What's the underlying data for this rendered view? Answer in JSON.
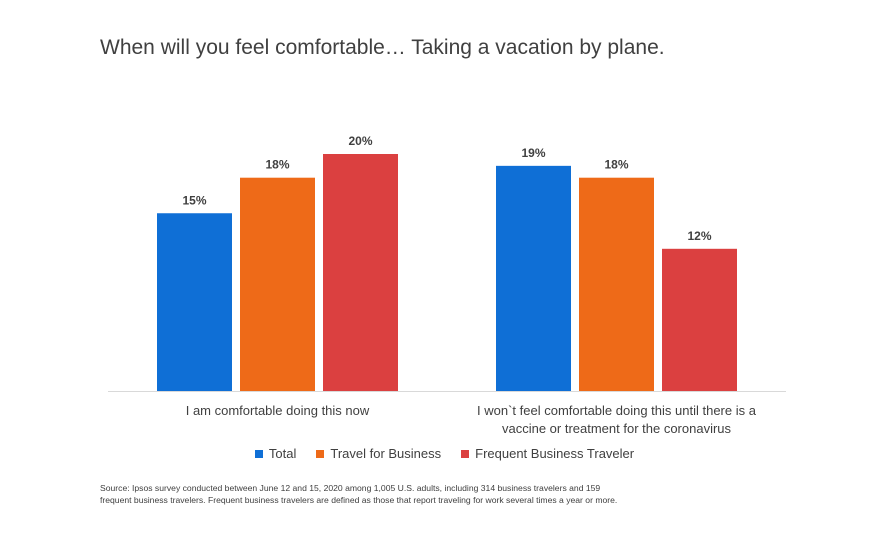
{
  "chart_data": {
    "type": "bar",
    "title": "When will you feel comfortable… Taking a vacation by plane.",
    "categories": [
      [
        "I am comfortable doing this now"
      ],
      [
        "I won`t feel comfortable doing this until there is a",
        "vaccine or treatment for the coronavirus"
      ]
    ],
    "series": [
      {
        "name": "Total",
        "color": "#0f6fd6",
        "values": [
          15,
          19
        ],
        "labels": [
          "15%",
          "19%"
        ]
      },
      {
        "name": "Travel for Business",
        "color": "#ee6a18",
        "values": [
          18,
          18
        ],
        "labels": [
          "18%",
          "18%"
        ]
      },
      {
        "name": "Frequent Business Traveler",
        "color": "#db4040",
        "values": [
          20,
          12
        ],
        "labels": [
          "20%",
          "12%"
        ]
      }
    ],
    "ylim": [
      0,
      25
    ],
    "xlabel": "",
    "ylabel": "",
    "grid": false,
    "legend": "bottom"
  },
  "source": {
    "lines": [
      "Source: Ipsos survey conducted between June 12 and 15, 2020 among 1,005 U.S. adults, including 314 business travelers and 159",
      "frequent business travelers. Frequent business travelers are defined as those that report traveling for work several times a year or more."
    ]
  }
}
